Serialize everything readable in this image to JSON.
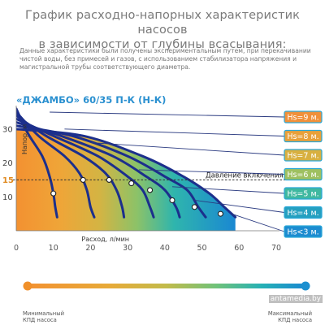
{
  "header": {
    "title_line1": "График расходно-напорных характеристик насосов",
    "title_line2": "в зависимости от глубины всасывания:",
    "description": "Данные характеристики были получены экспериментальным путем, при перекачивании чистой воды, без примесей и газов, с использованием стабилизатора напряжения и магистральной трубы соответствующего диаметра."
  },
  "chart_data": {
    "type": "line",
    "title": "«ДЖАМБО» 60/35 П-К (Н-К)",
    "xlabel": "Расход, л/мин",
    "ylabel": "Напор, м",
    "xlim": [
      0,
      70
    ],
    "ylim": [
      0,
      35
    ],
    "x_ticks": [
      "0",
      "10",
      "20",
      "30",
      "40",
      "50",
      "60",
      "70"
    ],
    "y_ticks": [
      "10",
      "15",
      "20",
      "30"
    ],
    "highlight_tick": "15",
    "threshold": {
      "y": 15,
      "label": "Давление включения"
    },
    "series": [
      {
        "name": "Hs=9 м.",
        "points": [
          [
            0,
            36
          ],
          [
            3,
            29
          ],
          [
            7,
            22
          ],
          [
            9,
            16
          ],
          [
            10,
            11
          ],
          [
            10.5,
            7
          ],
          [
            11,
            4
          ]
        ]
      },
      {
        "name": "Hs=8 м.",
        "points": [
          [
            0,
            35
          ],
          [
            6,
            28
          ],
          [
            13,
            22
          ],
          [
            17,
            17
          ],
          [
            19,
            12
          ],
          [
            20,
            7
          ],
          [
            21,
            4
          ]
        ]
      },
      {
        "name": "Hs=7 м.",
        "points": [
          [
            0,
            34
          ],
          [
            8,
            28
          ],
          [
            18,
            22
          ],
          [
            24,
            17
          ],
          [
            27,
            12
          ],
          [
            28.5,
            7
          ],
          [
            29,
            4
          ]
        ]
      },
      {
        "name": "Hs=6 м.",
        "points": [
          [
            0,
            33
          ],
          [
            10,
            28
          ],
          [
            22,
            22
          ],
          [
            30,
            16
          ],
          [
            34,
            12
          ],
          [
            36,
            7
          ],
          [
            37,
            4
          ]
        ]
      },
      {
        "name": "Hs=5 м.",
        "points": [
          [
            0,
            32
          ],
          [
            12,
            28
          ],
          [
            26,
            22
          ],
          [
            35,
            16
          ],
          [
            40,
            12
          ],
          [
            43,
            7
          ],
          [
            44,
            4
          ]
        ]
      },
      {
        "name": "Hs=4 м.",
        "points": [
          [
            0,
            31
          ],
          [
            15,
            28
          ],
          [
            30,
            22
          ],
          [
            40,
            16
          ],
          [
            46,
            12
          ],
          [
            49,
            7
          ],
          [
            51,
            4
          ]
        ]
      },
      {
        "name": "Hs<3 м.",
        "points": [
          [
            0,
            30
          ],
          [
            18,
            28
          ],
          [
            34,
            22
          ],
          [
            45,
            16
          ],
          [
            52,
            11
          ],
          [
            56,
            7
          ],
          [
            59,
            4
          ]
        ]
      }
    ],
    "markers": [
      [
        10,
        11
      ],
      [
        18,
        15
      ],
      [
        25,
        15
      ],
      [
        31,
        14
      ],
      [
        36,
        12
      ],
      [
        42,
        9
      ],
      [
        48,
        7
      ],
      [
        55,
        5
      ]
    ],
    "colors": {
      "curve": "#1c2f8c",
      "threshold": "#333333",
      "highlight": "#e08a20",
      "label_border": "#2aa8d8",
      "label_text": "#ffffff",
      "label_hs9": "#f0903a",
      "label_hs8": "#e8a03a",
      "label_hs7": "#d8b040",
      "label_hs6": "#9ec060",
      "label_hs5": "#3fb8a0",
      "label_hs4": "#25a0c0",
      "label_hs3": "#1c8cd0"
    }
  },
  "efficiency_scale": {
    "min_label_1": "Минимальный",
    "min_label_2": "КПД насоса",
    "max_label_1": "Максимальный",
    "max_label_2": "КПД насоса",
    "colors": [
      "#f0902a",
      "#e8a836",
      "#c9b94a",
      "#7cc070",
      "#28b0b0",
      "#1c90d0"
    ]
  },
  "watermark": "antamedia.by"
}
